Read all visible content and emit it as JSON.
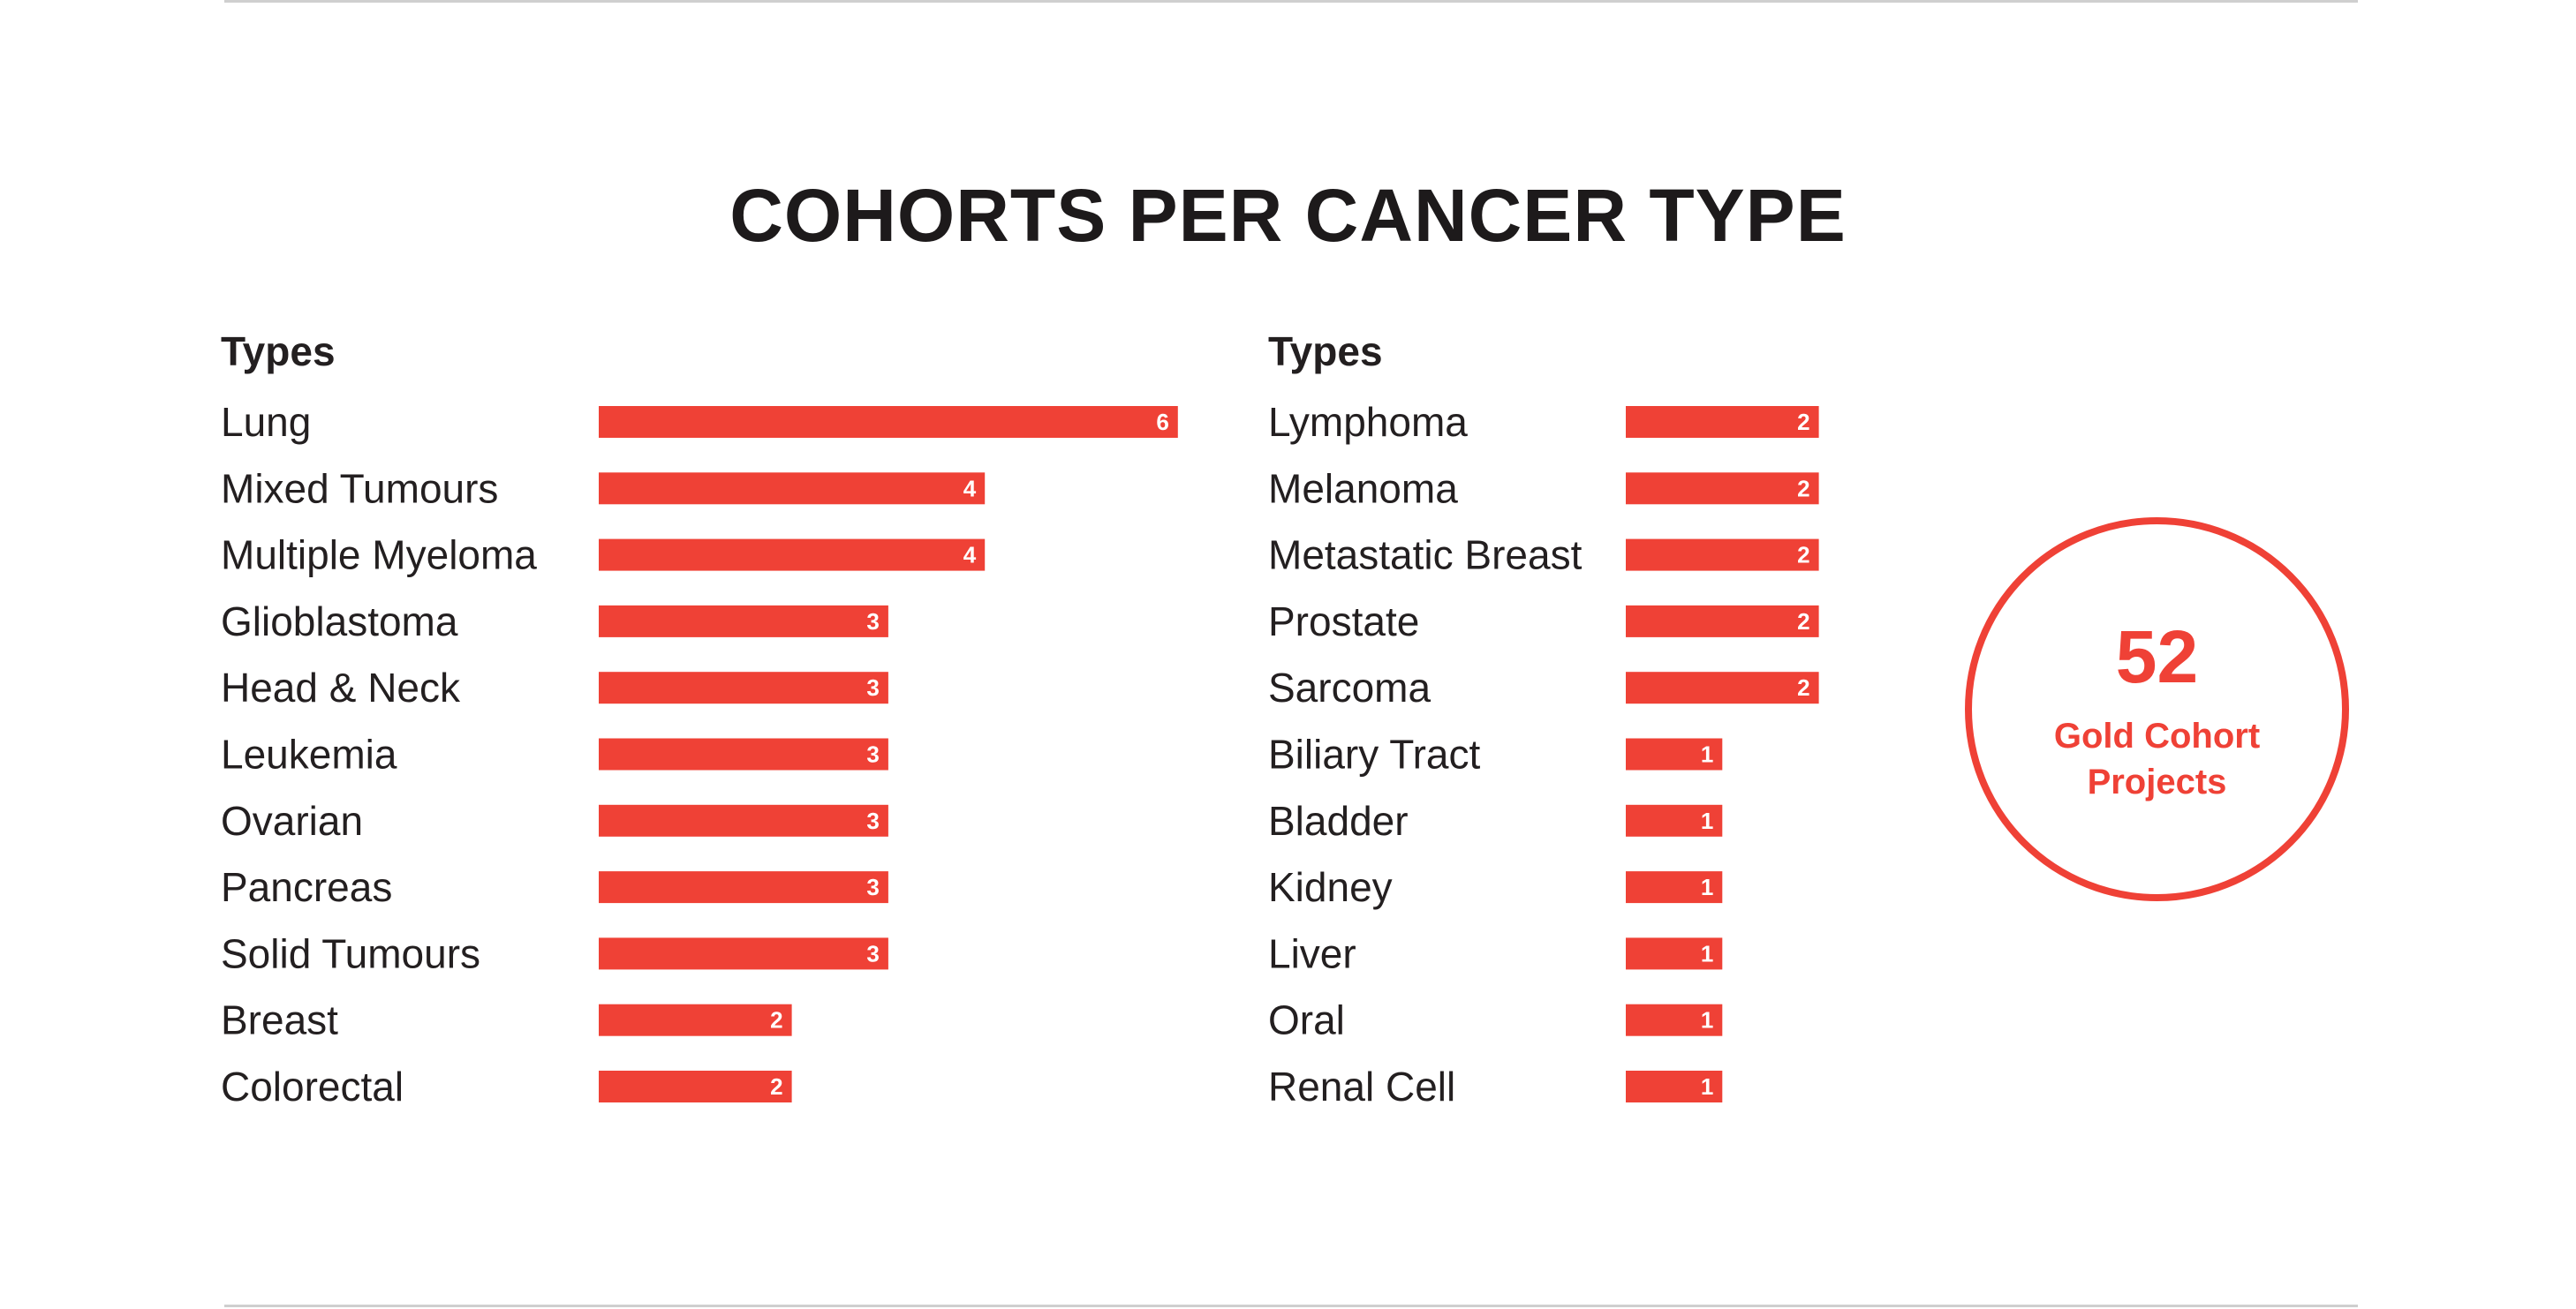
{
  "title": "COHORTS PER CANCER TYPE",
  "chart_data": [
    {
      "type": "bar",
      "orientation": "horizontal",
      "header": "Types",
      "categories": [
        "Lung",
        "Mixed Tumours",
        "Multiple Myeloma",
        "Glioblastoma",
        "Head & Neck",
        "Leukemia",
        "Ovarian",
        "Pancreas",
        "Solid Tumours",
        "Breast",
        "Colorectal"
      ],
      "values": [
        6,
        4,
        4,
        3,
        3,
        3,
        3,
        3,
        3,
        2,
        2
      ],
      "color": "#ef4136"
    },
    {
      "type": "bar",
      "orientation": "horizontal",
      "header": "Types",
      "categories": [
        "Lymphoma",
        "Melanoma",
        "Metastatic Breast",
        "Prostate",
        "Sarcoma",
        "Biliary Tract",
        "Bladder",
        "Kidney",
        "Liver",
        "Oral",
        "Renal Cell"
      ],
      "values": [
        2,
        2,
        2,
        2,
        2,
        1,
        1,
        1,
        1,
        1,
        1
      ],
      "color": "#ef4136"
    }
  ],
  "summary": {
    "number": "52",
    "label_line1": "Gold Cohort",
    "label_line2": "Projects"
  },
  "colors": {
    "accent": "#ef4136",
    "text": "#231f20"
  }
}
